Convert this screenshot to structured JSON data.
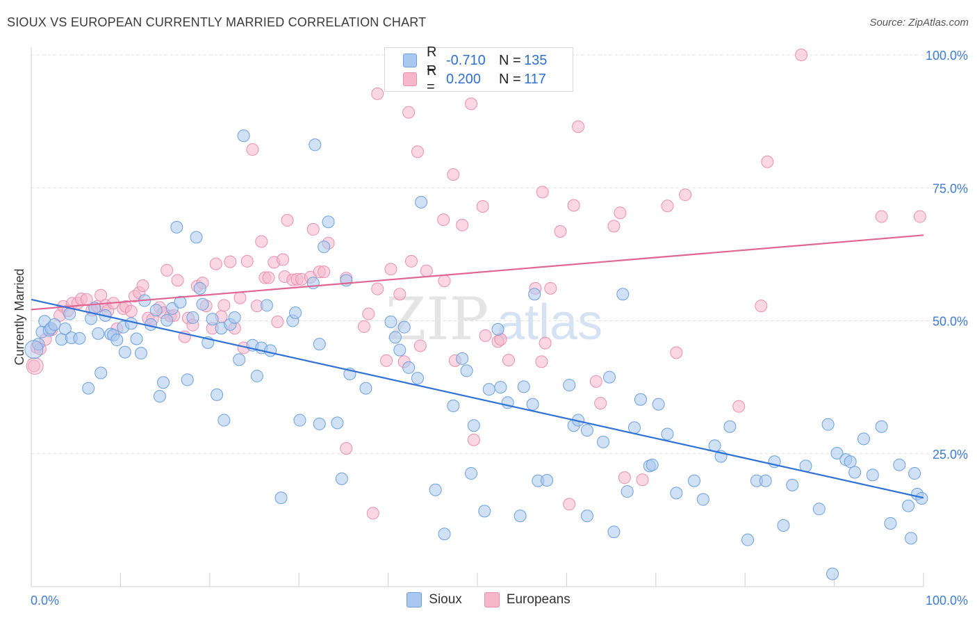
{
  "header": {
    "title": "SIOUX VS EUROPEAN CURRENTLY MARRIED CORRELATION CHART",
    "source": "Source: ZipAtlas.com"
  },
  "legend": {
    "rows": [
      {
        "r_label": "R =",
        "r_value": "-0.710",
        "n_label": "N =",
        "n_value": "135"
      },
      {
        "r_label": "R =",
        "r_value": "0.200",
        "n_label": "N =",
        "n_value": "117"
      }
    ]
  },
  "bottom_legend": [
    "Sioux",
    "Europeans"
  ],
  "watermark": {
    "zip": "ZIP",
    "atlas": "atlas"
  },
  "colors": {
    "sioux_fill": "#a9c8ef",
    "sioux_stroke": "#6b9fdf",
    "sioux_line": "#2f72d6",
    "europeans_fill": "#f6b7cb",
    "europeans_stroke": "#e98fae",
    "europeans_line": "#e06592",
    "axis_label": "#3e7bd4",
    "grid": "#dddddd"
  },
  "chart_data": {
    "type": "scatter",
    "title": "SIOUX VS EUROPEAN CURRENTLY MARRIED CORRELATION CHART",
    "xlabel": "",
    "ylabel": "Currently Married",
    "xlim": [
      0,
      100
    ],
    "ylim": [
      0,
      100
    ],
    "x_tick_labels": [
      "0.0%",
      "100.0%"
    ],
    "y_tick_labels": [
      "25.0%",
      "50.0%",
      "75.0%",
      "100.0%"
    ],
    "y_ticks": [
      25,
      50,
      75,
      100
    ],
    "grid": true,
    "legend_position": "top-center",
    "series": [
      {
        "name": "Sioux",
        "r": -0.71,
        "n": 135,
        "trend": {
          "x": [
            0,
            100
          ],
          "y": [
            54.0,
            16.7
          ]
        },
        "points": [
          [
            0.8,
            45.6
          ],
          [
            1.2,
            47.9
          ],
          [
            1.5,
            49.9
          ],
          [
            2.0,
            48.2
          ],
          [
            2.2,
            48.6
          ],
          [
            2.6,
            49.3
          ],
          [
            3.4,
            46.5
          ],
          [
            3.8,
            48.5
          ],
          [
            4.3,
            51.3
          ],
          [
            4.5,
            46.8
          ],
          [
            5.4,
            46.7
          ],
          [
            6.4,
            37.3
          ],
          [
            6.7,
            50.4
          ],
          [
            7.1,
            52.4
          ],
          [
            7.5,
            47.6
          ],
          [
            7.8,
            40.2
          ],
          [
            8.3,
            51.0
          ],
          [
            8.9,
            47.5
          ],
          [
            9.2,
            47.3
          ],
          [
            9.6,
            46.4
          ],
          [
            10.3,
            48.8
          ],
          [
            10.5,
            44.1
          ],
          [
            11.2,
            49.5
          ],
          [
            11.8,
            46.6
          ],
          [
            12.3,
            43.9
          ],
          [
            12.7,
            53.8
          ],
          [
            13.4,
            49.3
          ],
          [
            14.0,
            52.0
          ],
          [
            14.4,
            35.8
          ],
          [
            14.8,
            38.4
          ],
          [
            15.2,
            50.1
          ],
          [
            15.8,
            52.3
          ],
          [
            16.3,
            67.6
          ],
          [
            16.7,
            53.5
          ],
          [
            17.5,
            38.9
          ],
          [
            18.1,
            50.6
          ],
          [
            18.5,
            65.7
          ],
          [
            18.9,
            56.1
          ],
          [
            19.2,
            53.1
          ],
          [
            19.8,
            45.9
          ],
          [
            20.3,
            50.3
          ],
          [
            20.8,
            36.1
          ],
          [
            21.3,
            48.6
          ],
          [
            21.6,
            31.3
          ],
          [
            22.3,
            49.3
          ],
          [
            22.8,
            50.6
          ],
          [
            23.3,
            42.7
          ],
          [
            23.8,
            84.8
          ],
          [
            24.8,
            45.4
          ],
          [
            25.3,
            39.6
          ],
          [
            25.8,
            44.9
          ],
          [
            26.4,
            52.9
          ],
          [
            26.8,
            44.4
          ],
          [
            28.0,
            16.7
          ],
          [
            29.3,
            50.0
          ],
          [
            29.6,
            51.5
          ],
          [
            30.1,
            31.3
          ],
          [
            31.6,
            57.1
          ],
          [
            31.8,
            83.1
          ],
          [
            32.3,
            30.6
          ],
          [
            32.3,
            45.6
          ],
          [
            32.8,
            63.9
          ],
          [
            33.3,
            68.6
          ],
          [
            34.3,
            30.8
          ],
          [
            34.8,
            20.3
          ],
          [
            35.3,
            57.6
          ],
          [
            35.7,
            40.0
          ],
          [
            37.5,
            37.3
          ],
          [
            40.3,
            49.8
          ],
          [
            40.8,
            46.9
          ],
          [
            41.3,
            44.5
          ],
          [
            41.8,
            48.8
          ],
          [
            42.3,
            41.2
          ],
          [
            43.3,
            39.2
          ],
          [
            43.7,
            72.3
          ],
          [
            45.3,
            18.2
          ],
          [
            46.3,
            9.9
          ],
          [
            47.3,
            34.0
          ],
          [
            48.3,
            42.9
          ],
          [
            48.8,
            40.6
          ],
          [
            49.3,
            21.3
          ],
          [
            49.6,
            30.3
          ],
          [
            50.8,
            14.2
          ],
          [
            51.3,
            37.1
          ],
          [
            52.3,
            48.4
          ],
          [
            52.6,
            37.5
          ],
          [
            53.4,
            34.6
          ],
          [
            54.8,
            13.3
          ],
          [
            55.2,
            37.6
          ],
          [
            56.2,
            34.3
          ],
          [
            56.4,
            55.0
          ],
          [
            56.8,
            19.9
          ],
          [
            57.8,
            20.0
          ],
          [
            60.3,
            37.9
          ],
          [
            60.8,
            30.3
          ],
          [
            61.3,
            31.3
          ],
          [
            62.3,
            29.4
          ],
          [
            62.3,
            13.3
          ],
          [
            64.1,
            27.2
          ],
          [
            64.8,
            39.4
          ],
          [
            65.3,
            10.3
          ],
          [
            66.3,
            55.0
          ],
          [
            66.8,
            17.9
          ],
          [
            67.6,
            29.9
          ],
          [
            68.3,
            35.2
          ],
          [
            69.3,
            22.7
          ],
          [
            69.6,
            22.9
          ],
          [
            70.3,
            34.3
          ],
          [
            71.3,
            28.7
          ],
          [
            72.3,
            17.6
          ],
          [
            74.3,
            19.9
          ],
          [
            75.3,
            16.4
          ],
          [
            76.6,
            26.5
          ],
          [
            77.3,
            24.5
          ],
          [
            78.3,
            30.1
          ],
          [
            80.3,
            8.8
          ],
          [
            81.3,
            19.9
          ],
          [
            82.3,
            19.9
          ],
          [
            83.3,
            23.5
          ],
          [
            84.3,
            11.5
          ],
          [
            85.3,
            19.1
          ],
          [
            86.8,
            22.7
          ],
          [
            88.3,
            14.6
          ],
          [
            89.3,
            30.5
          ],
          [
            89.8,
            2.4
          ],
          [
            90.3,
            25.1
          ],
          [
            91.3,
            23.9
          ],
          [
            91.8,
            23.5
          ],
          [
            92.3,
            21.5
          ],
          [
            93.3,
            27.8
          ],
          [
            94.3,
            21.0
          ],
          [
            95.3,
            30.1
          ],
          [
            96.3,
            11.9
          ],
          [
            97.3,
            22.9
          ],
          [
            98.3,
            15.2
          ],
          [
            98.6,
            9.1
          ],
          [
            99.0,
            21.3
          ],
          [
            99.3,
            17.4
          ],
          [
            99.8,
            16.6
          ]
        ]
      },
      {
        "name": "Europeans",
        "r": 0.2,
        "n": 117,
        "trend": {
          "x": [
            0,
            100
          ],
          "y": [
            52.1,
            66.1
          ]
        },
        "points": [
          [
            0.3,
            41.5
          ],
          [
            0.6,
            45.0
          ],
          [
            1.0,
            44.7
          ],
          [
            1.6,
            46.5
          ],
          [
            2.3,
            48.3
          ],
          [
            3.2,
            51.0
          ],
          [
            3.6,
            52.7
          ],
          [
            4.1,
            51.9
          ],
          [
            4.6,
            53.3
          ],
          [
            5.2,
            53.3
          ],
          [
            5.6,
            54.1
          ],
          [
            6.2,
            54.0
          ],
          [
            6.8,
            52.0
          ],
          [
            7.4,
            52.7
          ],
          [
            7.8,
            54.8
          ],
          [
            8.3,
            52.9
          ],
          [
            8.6,
            51.9
          ],
          [
            9.2,
            53.3
          ],
          [
            9.6,
            48.5
          ],
          [
            10.3,
            52.3
          ],
          [
            10.6,
            52.7
          ],
          [
            11.2,
            51.8
          ],
          [
            11.6,
            54.6
          ],
          [
            12.1,
            55.3
          ],
          [
            12.5,
            56.6
          ],
          [
            13.1,
            50.5
          ],
          [
            13.6,
            50.3
          ],
          [
            14.4,
            52.5
          ],
          [
            14.8,
            51.5
          ],
          [
            15.2,
            59.5
          ],
          [
            15.6,
            50.9
          ],
          [
            16.0,
            51.0
          ],
          [
            16.4,
            57.6
          ],
          [
            17.2,
            47.0
          ],
          [
            17.6,
            50.5
          ],
          [
            18.1,
            49.2
          ],
          [
            18.6,
            56.5
          ],
          [
            19.2,
            57.1
          ],
          [
            19.6,
            52.8
          ],
          [
            20.3,
            48.6
          ],
          [
            20.7,
            60.7
          ],
          [
            21.3,
            50.8
          ],
          [
            21.6,
            52.9
          ],
          [
            22.3,
            61.1
          ],
          [
            22.8,
            48.6
          ],
          [
            23.4,
            54.3
          ],
          [
            23.8,
            44.9
          ],
          [
            24.2,
            61.2
          ],
          [
            24.8,
            82.2
          ],
          [
            25.3,
            52.8
          ],
          [
            25.8,
            64.9
          ],
          [
            26.2,
            58.1
          ],
          [
            26.6,
            58.1
          ],
          [
            27.2,
            61.0
          ],
          [
            27.6,
            49.8
          ],
          [
            28.2,
            61.5
          ],
          [
            28.4,
            58.3
          ],
          [
            28.7,
            68.9
          ],
          [
            29.3,
            57.7
          ],
          [
            29.8,
            57.8
          ],
          [
            30.3,
            57.8
          ],
          [
            31.3,
            58.2
          ],
          [
            31.6,
            67.2
          ],
          [
            32.3,
            59.2
          ],
          [
            32.8,
            59.2
          ],
          [
            33.3,
            64.6
          ],
          [
            35.3,
            58.0
          ],
          [
            35.3,
            26.0
          ],
          [
            37.3,
            48.9
          ],
          [
            37.8,
            51.3
          ],
          [
            38.3,
            13.8
          ],
          [
            38.8,
            56.0
          ],
          [
            38.8,
            92.7
          ],
          [
            39.8,
            42.5
          ],
          [
            40.3,
            59.7
          ],
          [
            41.3,
            55.0
          ],
          [
            41.8,
            42.3
          ],
          [
            42.3,
            89.2
          ],
          [
            42.6,
            61.2
          ],
          [
            43.3,
            81.8
          ],
          [
            43.6,
            45.3
          ],
          [
            44.3,
            59.4
          ],
          [
            46.2,
            69.0
          ],
          [
            46.3,
            57.5
          ],
          [
            47.3,
            77.5
          ],
          [
            47.5,
            42.5
          ],
          [
            48.3,
            68.0
          ],
          [
            49.3,
            90.8
          ],
          [
            49.6,
            27.6
          ],
          [
            50.6,
            71.5
          ],
          [
            50.9,
            47.2
          ],
          [
            52.3,
            46.1
          ],
          [
            52.6,
            46.5
          ],
          [
            53.5,
            42.6
          ],
          [
            55.3,
            94.3
          ],
          [
            56.5,
            56.1
          ],
          [
            57.2,
            42.3
          ],
          [
            57.3,
            74.2
          ],
          [
            57.6,
            45.8
          ],
          [
            58.2,
            56.1
          ],
          [
            59.3,
            66.8
          ],
          [
            60.3,
            15.5
          ],
          [
            60.8,
            71.7
          ],
          [
            61.3,
            86.5
          ],
          [
            63.3,
            38.6
          ],
          [
            63.8,
            34.5
          ],
          [
            65.3,
            67.8
          ],
          [
            66.0,
            70.3
          ],
          [
            66.5,
            20.5
          ],
          [
            68.5,
            20.1
          ],
          [
            71.3,
            71.6
          ],
          [
            72.3,
            44.0
          ],
          [
            73.3,
            73.7
          ],
          [
            79.3,
            33.9
          ],
          [
            81.8,
            52.8
          ],
          [
            82.5,
            79.9
          ],
          [
            86.3,
            100.0
          ],
          [
            95.3,
            69.6
          ],
          [
            99.6,
            69.6
          ]
        ]
      }
    ]
  }
}
